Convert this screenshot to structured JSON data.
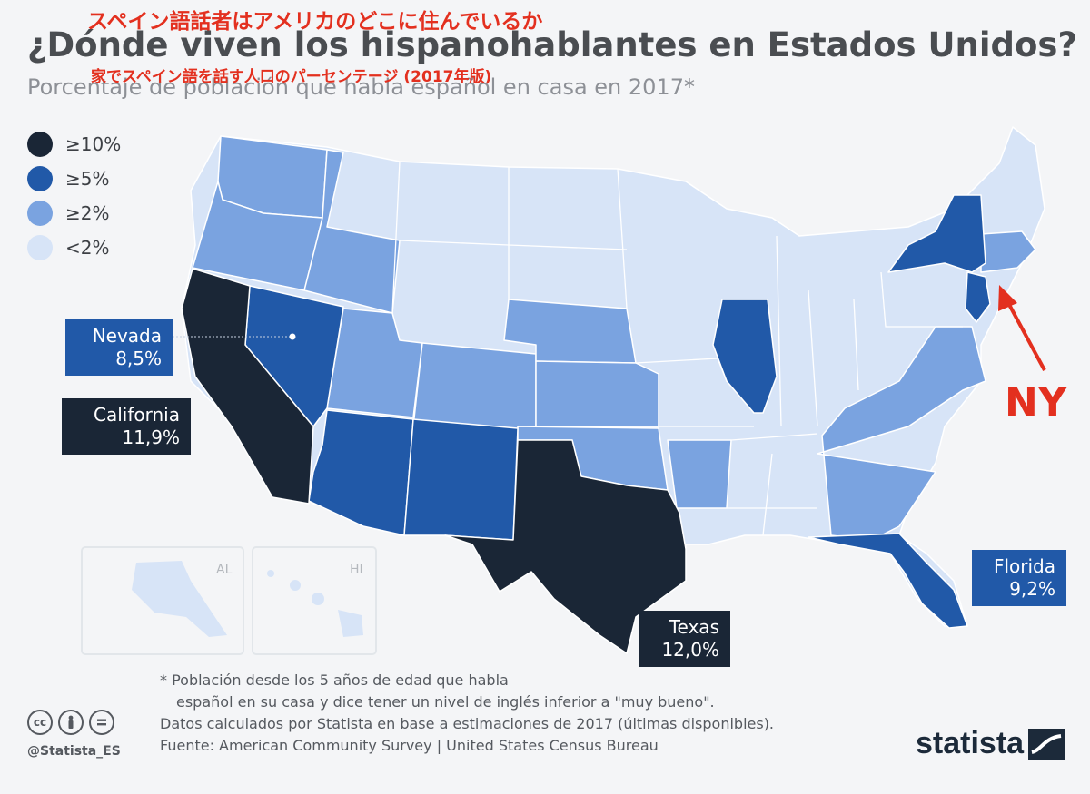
{
  "header": {
    "jp_title": "スペイン語話者はアメリカのどこに住んでいるか",
    "title": "¿Dónde viven los hispanohablantes en Estados Unidos?",
    "jp_subtitle": "家でスペイン語を話す人口のパーセンテージ (2017年版)",
    "subtitle": "Porcentaje de población que habla español en casa en 2017*"
  },
  "legend": [
    {
      "label": "≥10%",
      "color": "#1a2636"
    },
    {
      "label": "≥5%",
      "color": "#2159a8"
    },
    {
      "label": "≥2%",
      "color": "#7aa3e0"
    },
    {
      "label": "<2%",
      "color": "#d7e4f7"
    }
  ],
  "callouts": {
    "nevada": {
      "name": "Nevada",
      "value": "8,5%"
    },
    "california": {
      "name": "California",
      "value": "11,9%"
    },
    "florida": {
      "name": "Florida",
      "value": "9,2%"
    },
    "texas": {
      "name": "Texas",
      "value": "12,0%"
    }
  },
  "annotation": {
    "label": "NY",
    "color": "#e3301f"
  },
  "insets": {
    "alaska": "AL",
    "hawaii": "HI"
  },
  "notes": {
    "note1": "* Población desde los 5 años de edad que habla",
    "note2": "español en su casa y dice tener un nivel de inglés inferior a \"muy bueno\".",
    "note3": "Datos calculados por Statista en base a estimaciones de 2017 (últimas disponibles).",
    "source": "Fuente: American Community Survey | United States Census Bureau"
  },
  "footer": {
    "handle": "@Statista_ES",
    "brand": "statista",
    "license_icons": [
      "cc",
      "by",
      "nd"
    ]
  },
  "colors": {
    "ge10": "#1a2636",
    "ge5": "#2159a8",
    "ge2": "#7aa3e0",
    "lt2": "#d7e4f7"
  }
}
